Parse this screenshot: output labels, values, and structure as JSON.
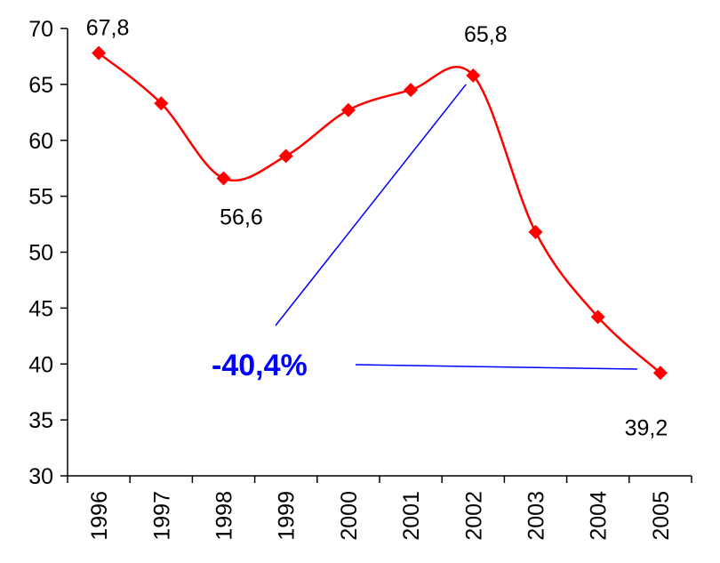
{
  "chart_data": {
    "type": "line",
    "title": "",
    "xlabel": "",
    "ylabel": "",
    "categories": [
      "1996",
      "1997",
      "1998",
      "1999",
      "2000",
      "2001",
      "2002",
      "2003",
      "2004",
      "2005"
    ],
    "series": [
      {
        "values": [
          67.8,
          63.3,
          56.6,
          58.6,
          62.7,
          64.5,
          65.8,
          51.8,
          44.2,
          39.2
        ],
        "color": "#ff0000"
      }
    ],
    "ylim": [
      30,
      70
    ],
    "yticks": [
      "30",
      "35",
      "40",
      "45",
      "50",
      "55",
      "60",
      "65",
      "70"
    ],
    "grid": false,
    "legend": "none",
    "data_labels": [
      {
        "index": 0,
        "text": "67,8"
      },
      {
        "index": 2,
        "text": "56,6"
      },
      {
        "index": 6,
        "text": "65,8"
      },
      {
        "index": 9,
        "text": "39,2"
      }
    ],
    "annotation": {
      "text": "-40,4%",
      "color": "#0000ff"
    }
  }
}
